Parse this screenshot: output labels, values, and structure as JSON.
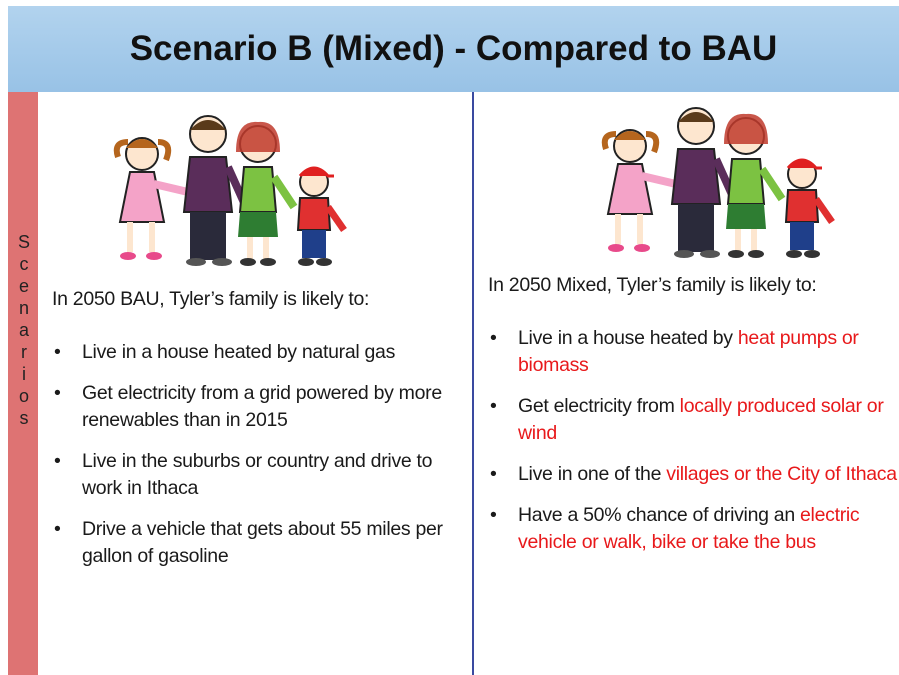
{
  "header": {
    "title": "Scenario B (Mixed) - Compared to BAU"
  },
  "sidebar": {
    "label": "Scenarios"
  },
  "left": {
    "heading": "In 2050 BAU, Tyler’s family is likely to:",
    "bullets": [
      [
        {
          "text": "Live in a house heated by natural gas"
        }
      ],
      [
        {
          "text": "Get electricity from a grid powered by more renewables than in 2015"
        }
      ],
      [
        {
          "text": "Live in the suburbs or country and drive to work in Ithaca"
        }
      ],
      [
        {
          "text": "Drive a vehicle that gets about 55 miles per gallon of gasoline"
        }
      ]
    ]
  },
  "right": {
    "heading": "In 2050 Mixed, Tyler’s family is likely to:",
    "bullets": [
      [
        {
          "text": "Live in a house heated by "
        },
        {
          "text": "heat pumps or biomass",
          "color": "#e8191b"
        }
      ],
      [
        {
          "text": "Get electricity from "
        },
        {
          "text": "locally produced solar or wind",
          "color": "#e8191b"
        }
      ],
      [
        {
          "text": "Live in one of the "
        },
        {
          "text": "villages or the City of Ithaca",
          "color": "#e8191b"
        }
      ],
      [
        {
          "text": "Have a 50% chance of driving an "
        },
        {
          "text": "electric vehicle or walk, bike or take the bus",
          "color": "#e8191b"
        }
      ]
    ]
  }
}
